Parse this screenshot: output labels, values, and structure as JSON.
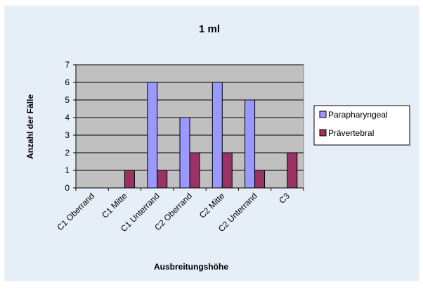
{
  "colors": {
    "figure_background": "#e6eef7",
    "plot_background": "#c0c0c0",
    "gridline": "#000000",
    "axis": "#000000",
    "series_1": "#9999ff",
    "series_2": "#993366"
  },
  "chart_data": {
    "type": "bar",
    "title": "1 ml",
    "xlabel": "Ausbreitungshöhe",
    "ylabel": "Anzahl der Fälle",
    "categories": [
      "C1 Oberrand",
      "C1 Mitte",
      "C1 Unterrand",
      "C2 Oberrand",
      "C2 Mitte",
      "C2 Unterrand",
      "C3"
    ],
    "series": [
      {
        "name": "Parapharyngeal",
        "values": [
          0,
          0,
          6,
          4,
          6,
          5,
          0
        ]
      },
      {
        "name": "Prävertebral",
        "values": [
          0,
          1,
          1,
          2,
          2,
          1,
          2
        ]
      }
    ],
    "ylim": [
      0,
      7
    ],
    "yticks": [
      0,
      1,
      2,
      3,
      4,
      5,
      6,
      7
    ],
    "grid": true,
    "legend_position": "right"
  }
}
